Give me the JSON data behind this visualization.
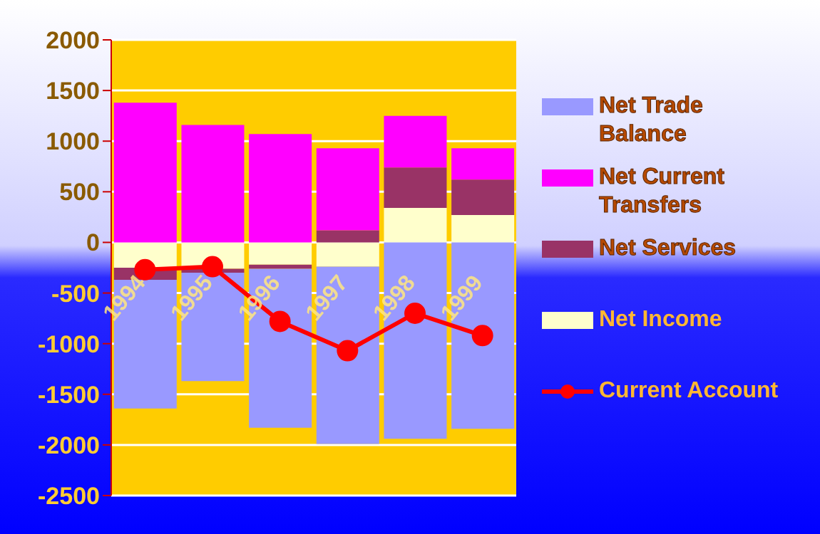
{
  "chart_data": {
    "type": "bar",
    "stacked": true,
    "categories": [
      "1994",
      "1995",
      "1996",
      "1997",
      "1998",
      "1999"
    ],
    "series": [
      {
        "name": "Net Income",
        "color": "#ffffcc",
        "values": [
          -250,
          -260,
          -220,
          -240,
          340,
          270
        ]
      },
      {
        "name": "Net Services",
        "color": "#993366",
        "values": [
          -120,
          -40,
          -40,
          120,
          400,
          350
        ]
      },
      {
        "name": "Net Current Transfers",
        "color": "#ff00ff",
        "values": [
          1380,
          1160,
          1070,
          810,
          510,
          310
        ]
      },
      {
        "name": "Net Trade Balance",
        "color": "#9999ff",
        "values": [
          -1270,
          -1070,
          -1570,
          -1750,
          -1940,
          -1840
        ]
      },
      {
        "name": "Current Account",
        "type": "line",
        "color": "#ff0000",
        "marker": "circle",
        "values": [
          -270,
          -240,
          -780,
          -1070,
          -700,
          -920
        ]
      }
    ],
    "ylim": [
      -2500,
      2000
    ],
    "yticks": [
      -2500,
      -2000,
      -1500,
      -1000,
      -500,
      0,
      500,
      1000,
      1500,
      2000
    ],
    "grid": "y",
    "legend": "right"
  }
}
